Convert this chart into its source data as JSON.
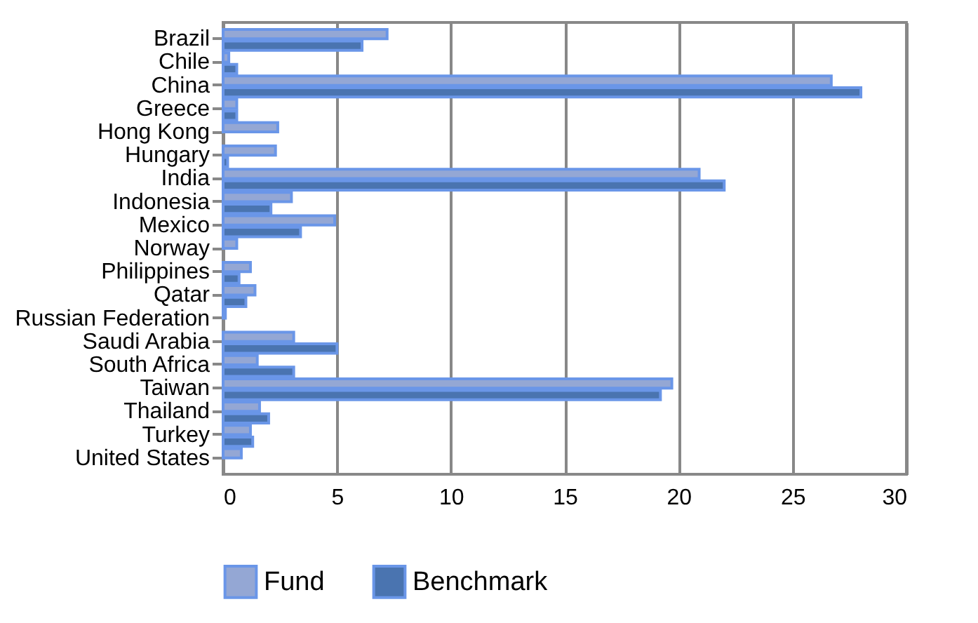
{
  "chart_data": {
    "type": "bar",
    "orientation": "horizontal",
    "categories": [
      "Brazil",
      "Chile",
      "China",
      "Greece",
      "Hong Kong",
      "Hungary",
      "India",
      "Indonesia",
      "Mexico",
      "Norway",
      "Philippines",
      "Qatar",
      "Russian Federation",
      "Saudi Arabia",
      "South Africa",
      "Taiwan",
      "Thailand",
      "Turkey",
      "United States"
    ],
    "series": [
      {
        "name": "Fund",
        "color": "#94a7d4",
        "values": [
          7.2,
          0.25,
          26.7,
          0.6,
          2.4,
          2.3,
          20.9,
          3.0,
          4.9,
          0.6,
          1.2,
          1.4,
          0.1,
          3.1,
          1.5,
          19.7,
          1.6,
          1.2,
          0.8
        ]
      },
      {
        "name": "Benchmark",
        "color": "#4a74b0",
        "values": [
          6.1,
          0.6,
          28.0,
          0.6,
          null,
          0.2,
          22.0,
          2.1,
          3.4,
          null,
          0.7,
          1.0,
          null,
          5.0,
          3.1,
          19.2,
          2.0,
          1.3,
          null
        ]
      }
    ],
    "xlim": [
      0,
      30
    ],
    "xticks": [
      0,
      5,
      10,
      15,
      20,
      25,
      30
    ],
    "grid": "x",
    "legend": "bottom"
  }
}
